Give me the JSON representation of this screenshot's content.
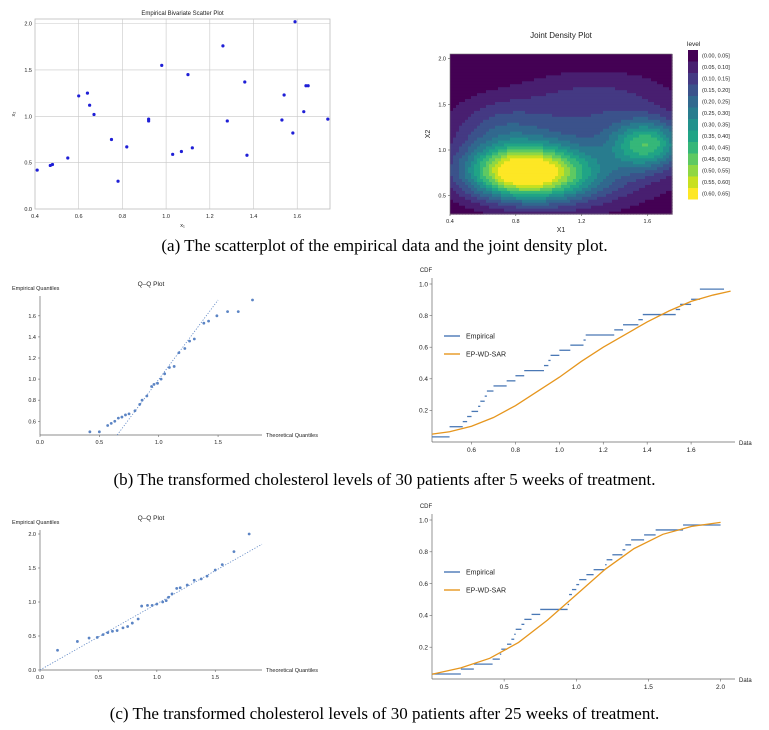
{
  "captions": {
    "a": "(a) The scatterplot of the empirical data and the joint density plot.",
    "b": "(b) The transformed cholesterol levels of 30 patients after 5 weeks of treatment.",
    "c": "(c) The transformed cholesterol levels of 30 patients after 25 weeks of treatment."
  },
  "colors": {
    "points": "#1f1fd6",
    "qq_points": "#5b84c4",
    "empirical": "#4a78b5",
    "model": "#e6961e"
  },
  "chart_data": [
    {
      "id": "scatter",
      "type": "scatter",
      "title": "Empirical Bivariate Scatter Plot",
      "xlabel": "x₁",
      "ylabel": "x₂",
      "xlim": [
        0.4,
        1.75
      ],
      "ylim": [
        0.0,
        2.05
      ],
      "xticks": [
        "0.4",
        "0.6",
        "0.8",
        "1.0",
        "1.2",
        "1.4",
        "1.6"
      ],
      "xtick_values": [
        0.4,
        0.6,
        0.8,
        1.0,
        1.2,
        1.4,
        1.6
      ],
      "yticks": [
        "0.0",
        "0.5",
        "1.0",
        "1.5",
        "2.0"
      ],
      "ytick_values": [
        0.0,
        0.5,
        1.0,
        1.5,
        2.0
      ],
      "grid": true,
      "points": [
        [
          0.41,
          0.42
        ],
        [
          0.47,
          0.47
        ],
        [
          0.48,
          0.48
        ],
        [
          0.55,
          0.55
        ],
        [
          0.6,
          1.22
        ],
        [
          0.64,
          1.25
        ],
        [
          0.65,
          1.12
        ],
        [
          0.67,
          1.02
        ],
        [
          0.75,
          0.75
        ],
        [
          0.78,
          0.3
        ],
        [
          0.82,
          0.67
        ],
        [
          0.92,
          0.95
        ],
        [
          0.92,
          0.97
        ],
        [
          0.98,
          1.55
        ],
        [
          1.03,
          0.59
        ],
        [
          1.07,
          0.62
        ],
        [
          1.1,
          1.45
        ],
        [
          1.12,
          0.66
        ],
        [
          1.26,
          1.76
        ],
        [
          1.28,
          0.95
        ],
        [
          1.36,
          1.37
        ],
        [
          1.37,
          0.58
        ],
        [
          1.53,
          0.96
        ],
        [
          1.54,
          1.23
        ],
        [
          1.58,
          0.82
        ],
        [
          1.59,
          2.02
        ],
        [
          1.63,
          1.05
        ],
        [
          1.64,
          1.33
        ],
        [
          1.65,
          1.33
        ],
        [
          1.74,
          0.97
        ]
      ]
    },
    {
      "id": "density",
      "type": "heatmap",
      "title": "Joint Density Plot",
      "xlabel": "X1",
      "ylabel": "X2",
      "xlim": [
        0.4,
        1.75
      ],
      "ylim": [
        0.3,
        2.05
      ],
      "xticks": [
        "0.4",
        "0.8",
        "1.2",
        "1.6"
      ],
      "xtick_values": [
        0.4,
        0.8,
        1.2,
        1.6
      ],
      "yticks": [
        "0.5",
        "1.0",
        "1.5",
        "2.0"
      ],
      "ytick_values": [
        0.5,
        1.0,
        1.5,
        2.0
      ],
      "legend_title": "level",
      "legend": [
        "(0.00, 0.05]",
        "(0.05, 0.10]",
        "(0.10, 0.15]",
        "(0.15, 0.20]",
        "(0.20, 0.25]",
        "(0.25, 0.30]",
        "(0.30, 0.35]",
        "(0.35, 0.40]",
        "(0.40, 0.45]",
        "(0.45, 0.50]",
        "(0.50, 0.55]",
        "(0.55, 0.60]",
        "(0.60, 0.65]"
      ],
      "legend_colors": [
        "#440154",
        "#481f70",
        "#443983",
        "#3b528b",
        "#31688e",
        "#287c8e",
        "#21918c",
        "#20a486",
        "#35b779",
        "#5ec962",
        "#90d743",
        "#c8e020",
        "#fde725"
      ],
      "peaks": [
        {
          "x": 0.82,
          "y": 0.77,
          "sx": 0.23,
          "sy": 0.2,
          "h": 0.52
        },
        {
          "x": 1.6,
          "y": 1.07,
          "sx": 0.15,
          "sy": 0.18,
          "h": 0.34
        },
        {
          "x": 1.05,
          "y": 0.7,
          "sx": 0.28,
          "sy": 0.22,
          "h": 0.2
        },
        {
          "x": 1.2,
          "y": 1.05,
          "sx": 0.5,
          "sy": 0.4,
          "h": 0.14
        },
        {
          "x": 0.7,
          "y": 1.25,
          "sx": 0.2,
          "sy": 0.22,
          "h": 0.1
        },
        {
          "x": 1.3,
          "y": 1.6,
          "sx": 0.32,
          "sy": 0.22,
          "h": 0.07
        }
      ]
    },
    {
      "id": "qq1",
      "type": "scatter",
      "title": "Q–Q Plot",
      "xlabel": "Theoretical Quantiles",
      "ylabel": "Empirical Quantiles",
      "xlim": [
        0.0,
        1.87
      ],
      "ylim": [
        0.47,
        1.75
      ],
      "xticks": [
        "0.0",
        "0.5",
        "1.0",
        "1.5"
      ],
      "xtick_values": [
        0.0,
        0.5,
        1.0,
        1.5
      ],
      "yticks": [
        "0.6",
        "0.8",
        "1.0",
        "1.2",
        "1.4",
        "1.6"
      ],
      "ytick_values": [
        0.6,
        0.8,
        1.0,
        1.2,
        1.4,
        1.6
      ],
      "reference_line": [
        [
          0.65,
          0.47
        ],
        [
          1.5,
          1.75
        ]
      ],
      "points": [
        [
          0.42,
          0.5
        ],
        [
          0.5,
          0.5
        ],
        [
          0.57,
          0.56
        ],
        [
          0.6,
          0.58
        ],
        [
          0.63,
          0.6
        ],
        [
          0.66,
          0.63
        ],
        [
          0.69,
          0.64
        ],
        [
          0.72,
          0.66
        ],
        [
          0.75,
          0.67
        ],
        [
          0.8,
          0.7
        ],
        [
          0.84,
          0.76
        ],
        [
          0.86,
          0.8
        ],
        [
          0.9,
          0.84
        ],
        [
          0.94,
          0.93
        ],
        [
          0.96,
          0.95
        ],
        [
          0.99,
          0.96
        ],
        [
          1.02,
          1.0
        ],
        [
          1.05,
          1.05
        ],
        [
          1.09,
          1.11
        ],
        [
          1.13,
          1.12
        ],
        [
          1.17,
          1.25
        ],
        [
          1.22,
          1.29
        ],
        [
          1.26,
          1.36
        ],
        [
          1.3,
          1.38
        ],
        [
          1.38,
          1.53
        ],
        [
          1.42,
          1.55
        ],
        [
          1.49,
          1.6
        ],
        [
          1.58,
          1.64
        ],
        [
          1.67,
          1.64
        ],
        [
          1.79,
          1.75
        ]
      ]
    },
    {
      "id": "cdf1",
      "type": "line",
      "title": "",
      "xlabel": "Data",
      "ylabel": "CDF",
      "xlim": [
        0.42,
        1.8
      ],
      "ylim": [
        0.0,
        1.0
      ],
      "xticks": [
        "0.6",
        "0.8",
        "1.0",
        "1.2",
        "1.4",
        "1.6"
      ],
      "xtick_values": [
        0.6,
        0.8,
        1.0,
        1.2,
        1.4,
        1.6
      ],
      "yticks": [
        "0.2",
        "0.4",
        "0.6",
        "0.8",
        "1.0"
      ],
      "ytick_values": [
        0.2,
        0.4,
        0.6,
        0.8,
        1.0
      ],
      "legend": [
        "Empirical",
        "EP-WD-SAR"
      ],
      "legend_position": "left",
      "empirical_x": [
        0.42,
        0.5,
        0.5,
        0.56,
        0.58,
        0.6,
        0.63,
        0.64,
        0.66,
        0.67,
        0.7,
        0.76,
        0.8,
        0.84,
        0.93,
        0.95,
        0.96,
        1.0,
        1.05,
        1.11,
        1.12,
        1.25,
        1.29,
        1.36,
        1.38,
        1.53,
        1.55,
        1.6,
        1.64,
        1.64,
        1.75
      ],
      "model": [
        [
          0.42,
          0.05
        ],
        [
          0.5,
          0.065
        ],
        [
          0.6,
          0.1
        ],
        [
          0.7,
          0.155
        ],
        [
          0.8,
          0.23
        ],
        [
          0.9,
          0.32
        ],
        [
          1.0,
          0.41
        ],
        [
          1.1,
          0.51
        ],
        [
          1.2,
          0.6
        ],
        [
          1.3,
          0.68
        ],
        [
          1.4,
          0.76
        ],
        [
          1.5,
          0.83
        ],
        [
          1.6,
          0.89
        ],
        [
          1.7,
          0.93
        ],
        [
          1.78,
          0.955
        ]
      ]
    },
    {
      "id": "qq2",
      "type": "scatter",
      "title": "Q–Q Plot",
      "xlabel": "Theoretical Quantiles",
      "ylabel": "Empirical Quantiles",
      "xlim": [
        0.0,
        1.9
      ],
      "ylim": [
        0.0,
        2.0
      ],
      "xticks": [
        "0.0",
        "0.5",
        "1.0",
        "1.5"
      ],
      "xtick_values": [
        0.0,
        0.5,
        1.0,
        1.5
      ],
      "yticks": [
        "0.0",
        "0.5",
        "1.0",
        "1.5",
        "2.0"
      ],
      "ytick_values": [
        0.0,
        0.5,
        1.0,
        1.5,
        2.0
      ],
      "reference_line": [
        [
          0.0,
          0.0
        ],
        [
          1.9,
          1.85
        ]
      ],
      "points": [
        [
          0.15,
          0.29
        ],
        [
          0.32,
          0.42
        ],
        [
          0.42,
          0.47
        ],
        [
          0.49,
          0.48
        ],
        [
          0.54,
          0.52
        ],
        [
          0.58,
          0.55
        ],
        [
          0.62,
          0.57
        ],
        [
          0.66,
          0.58
        ],
        [
          0.71,
          0.62
        ],
        [
          0.75,
          0.64
        ],
        [
          0.79,
          0.69
        ],
        [
          0.84,
          0.75
        ],
        [
          0.87,
          0.94
        ],
        [
          0.92,
          0.95
        ],
        [
          0.96,
          0.95
        ],
        [
          1.0,
          0.97
        ],
        [
          1.05,
          1.0
        ],
        [
          1.08,
          1.02
        ],
        [
          1.1,
          1.07
        ],
        [
          1.13,
          1.12
        ],
        [
          1.17,
          1.2
        ],
        [
          1.2,
          1.21
        ],
        [
          1.26,
          1.25
        ],
        [
          1.32,
          1.32
        ],
        [
          1.38,
          1.34
        ],
        [
          1.43,
          1.38
        ],
        [
          1.5,
          1.47
        ],
        [
          1.56,
          1.55
        ],
        [
          1.66,
          1.74
        ],
        [
          1.79,
          2.0
        ]
      ]
    },
    {
      "id": "cdf2",
      "type": "line",
      "title": "",
      "xlabel": "Data",
      "ylabel": "CDF",
      "xlim": [
        0.0,
        2.1
      ],
      "ylim": [
        0.0,
        1.0
      ],
      "xticks": [
        "0.5",
        "1.0",
        "1.5",
        "2.0"
      ],
      "xtick_values": [
        0.5,
        1.0,
        1.5,
        2.0
      ],
      "yticks": [
        "0.2",
        "0.4",
        "0.6",
        "0.8",
        "1.0"
      ],
      "ytick_values": [
        0.2,
        0.4,
        0.6,
        0.8,
        1.0
      ],
      "legend": [
        "Empirical",
        "EP-WD-SAR"
      ],
      "legend_position": "left",
      "empirical_x": [
        0.0,
        0.2,
        0.29,
        0.42,
        0.47,
        0.48,
        0.52,
        0.55,
        0.57,
        0.58,
        0.62,
        0.64,
        0.69,
        0.75,
        0.94,
        0.95,
        0.95,
        0.97,
        1.0,
        1.02,
        1.07,
        1.12,
        1.2,
        1.21,
        1.25,
        1.32,
        1.34,
        1.38,
        1.47,
        1.55,
        1.74,
        2.0
      ],
      "model": [
        [
          0.0,
          0.03
        ],
        [
          0.2,
          0.07
        ],
        [
          0.4,
          0.13
        ],
        [
          0.6,
          0.23
        ],
        [
          0.8,
          0.37
        ],
        [
          1.0,
          0.53
        ],
        [
          1.2,
          0.69
        ],
        [
          1.4,
          0.82
        ],
        [
          1.6,
          0.91
        ],
        [
          1.8,
          0.96
        ],
        [
          2.0,
          0.985
        ]
      ]
    }
  ]
}
